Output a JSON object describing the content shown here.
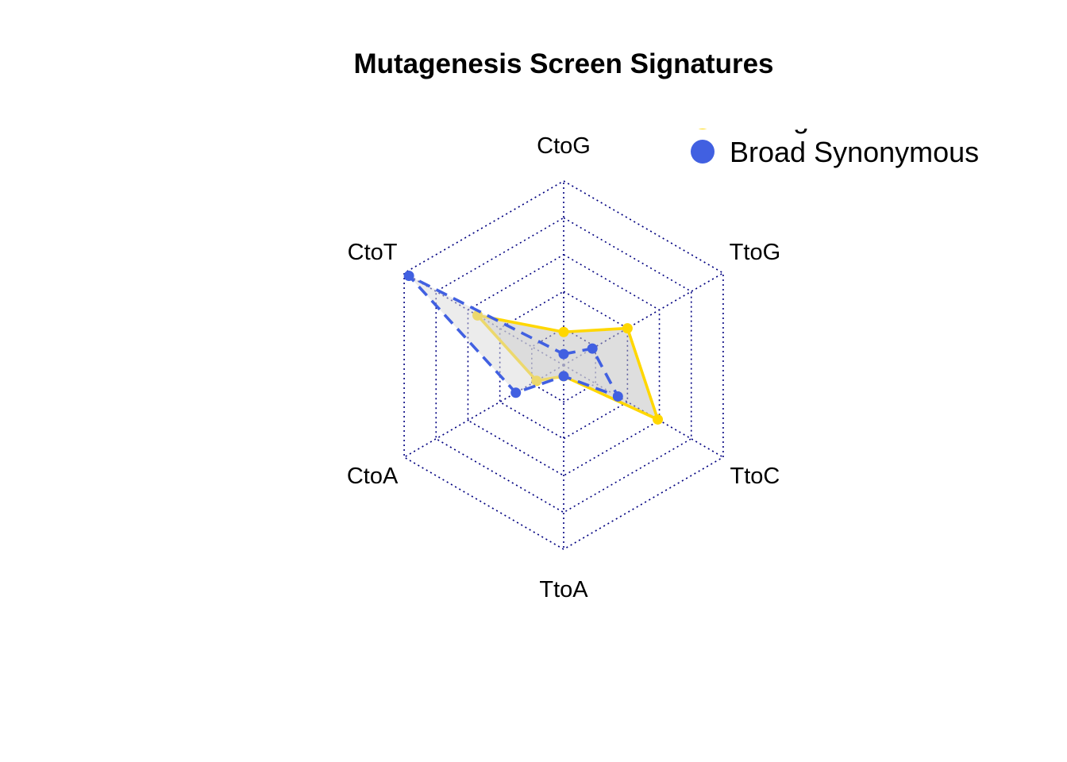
{
  "chart_data": {
    "type": "radar",
    "title": "Mutagenesis Screen Signatures",
    "axes": [
      "CtoG",
      "TtoG",
      "TtoC",
      "TtoA",
      "CtoA",
      "CtoT"
    ],
    "range": [
      0,
      1
    ],
    "grid_levels": 5,
    "grid_style": "dotted",
    "grid_color": "#000080",
    "legend_position": "top-right",
    "series": [
      {
        "name": "Mutagenized",
        "color": "#FFD700",
        "line_style": "solid",
        "fill": "#BEBEBE",
        "values": [
          0.18,
          0.4,
          0.59,
          0.06,
          0.17,
          0.54
        ]
      },
      {
        "name": "Broad Synonymous",
        "color": "#4160E1",
        "line_style": "dashed",
        "fill": "#D9D9D9",
        "values": [
          0.06,
          0.18,
          0.34,
          0.06,
          0.3,
          0.97
        ]
      }
    ]
  }
}
